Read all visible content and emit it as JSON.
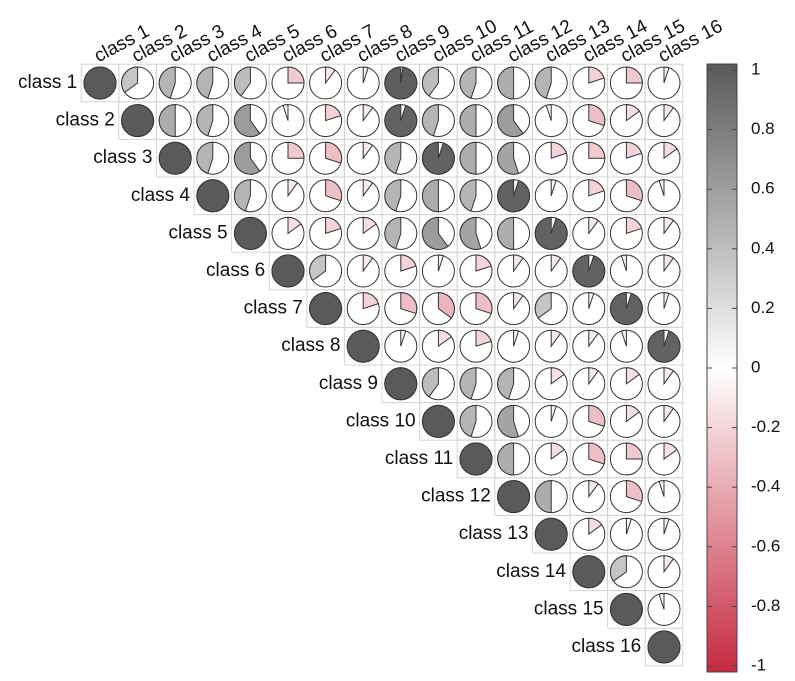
{
  "chart_data": {
    "type": "corrplot-pie",
    "labels": [
      "class 1",
      "class 2",
      "class 3",
      "class 4",
      "class 5",
      "class 6",
      "class 7",
      "class 8",
      "class 9",
      "class 10",
      "class 11",
      "class 12",
      "class 13",
      "class 14",
      "class 15",
      "class 16"
    ],
    "matrix": [
      [
        1,
        0.35,
        0.45,
        0.45,
        0.4,
        -0.25,
        -0.1,
        -0.05,
        0.98,
        0.4,
        0.45,
        0.5,
        0.45,
        -0.2,
        -0.25,
        -0.05
      ],
      [
        null,
        1,
        0.5,
        0.45,
        0.6,
        0.05,
        -0.2,
        -0.1,
        0.95,
        0.45,
        0.5,
        0.6,
        0.05,
        -0.3,
        -0.15,
        -0.1
      ],
      [
        null,
        null,
        1,
        0.45,
        0.6,
        -0.25,
        -0.3,
        -0.1,
        0.45,
        0.95,
        0.5,
        0.55,
        -0.2,
        -0.25,
        -0.2,
        -0.15
      ],
      [
        null,
        null,
        null,
        1,
        0.45,
        -0.1,
        -0.3,
        -0.1,
        0.45,
        0.5,
        0.45,
        0.95,
        -0.05,
        -0.2,
        -0.3,
        0.05
      ],
      [
        null,
        null,
        null,
        null,
        1,
        -0.15,
        -0.2,
        -0.15,
        0.45,
        0.6,
        0.55,
        0.5,
        0.95,
        -0.1,
        -0.2,
        -0.1
      ],
      [
        null,
        null,
        null,
        null,
        null,
        1,
        0.35,
        -0.1,
        -0.2,
        -0.05,
        -0.2,
        -0.1,
        -0.1,
        0.95,
        0.05,
        -0.1
      ],
      [
        null,
        null,
        null,
        null,
        null,
        null,
        1,
        -0.2,
        -0.3,
        -0.35,
        -0.3,
        -0.1,
        0.35,
        -0.05,
        0.95,
        -0.05
      ],
      [
        null,
        null,
        null,
        null,
        null,
        null,
        null,
        1,
        -0.05,
        -0.15,
        -0.2,
        -0.05,
        -0.1,
        -0.1,
        0.05,
        0.95
      ],
      [
        null,
        null,
        null,
        null,
        null,
        null,
        null,
        null,
        1,
        0.4,
        0.45,
        0.45,
        -0.15,
        -0.1,
        -0.15,
        -0.1
      ],
      [
        null,
        null,
        null,
        null,
        null,
        null,
        null,
        null,
        null,
        1,
        0.45,
        0.55,
        -0.05,
        -0.3,
        -0.15,
        -0.1
      ],
      [
        null,
        null,
        null,
        null,
        null,
        null,
        null,
        null,
        null,
        null,
        1,
        0.5,
        -0.15,
        -0.3,
        -0.25,
        -0.15
      ],
      [
        null,
        null,
        null,
        null,
        null,
        null,
        null,
        null,
        null,
        null,
        null,
        1,
        0.5,
        -0.1,
        -0.3,
        0.05
      ],
      [
        null,
        null,
        null,
        null,
        null,
        null,
        null,
        null,
        null,
        null,
        null,
        null,
        1,
        -0.15,
        -0.05,
        -0.05
      ],
      [
        null,
        null,
        null,
        null,
        null,
        null,
        null,
        null,
        null,
        null,
        null,
        null,
        null,
        1,
        0.35,
        -0.1
      ],
      [
        null,
        null,
        null,
        null,
        null,
        null,
        null,
        null,
        null,
        null,
        null,
        null,
        null,
        null,
        1,
        0.05
      ],
      [
        null,
        null,
        null,
        null,
        null,
        null,
        null,
        null,
        null,
        null,
        null,
        null,
        null,
        null,
        null,
        1
      ]
    ],
    "clim": [
      -1,
      1
    ],
    "colorbar_ticks": [
      1,
      0.8,
      0.6,
      0.4,
      0.2,
      0,
      -0.2,
      -0.4,
      -0.6,
      -0.8,
      -1
    ],
    "colors": {
      "negative": "#c62a40",
      "zero": "#ffffff",
      "positive": "#5a5a5a"
    }
  }
}
